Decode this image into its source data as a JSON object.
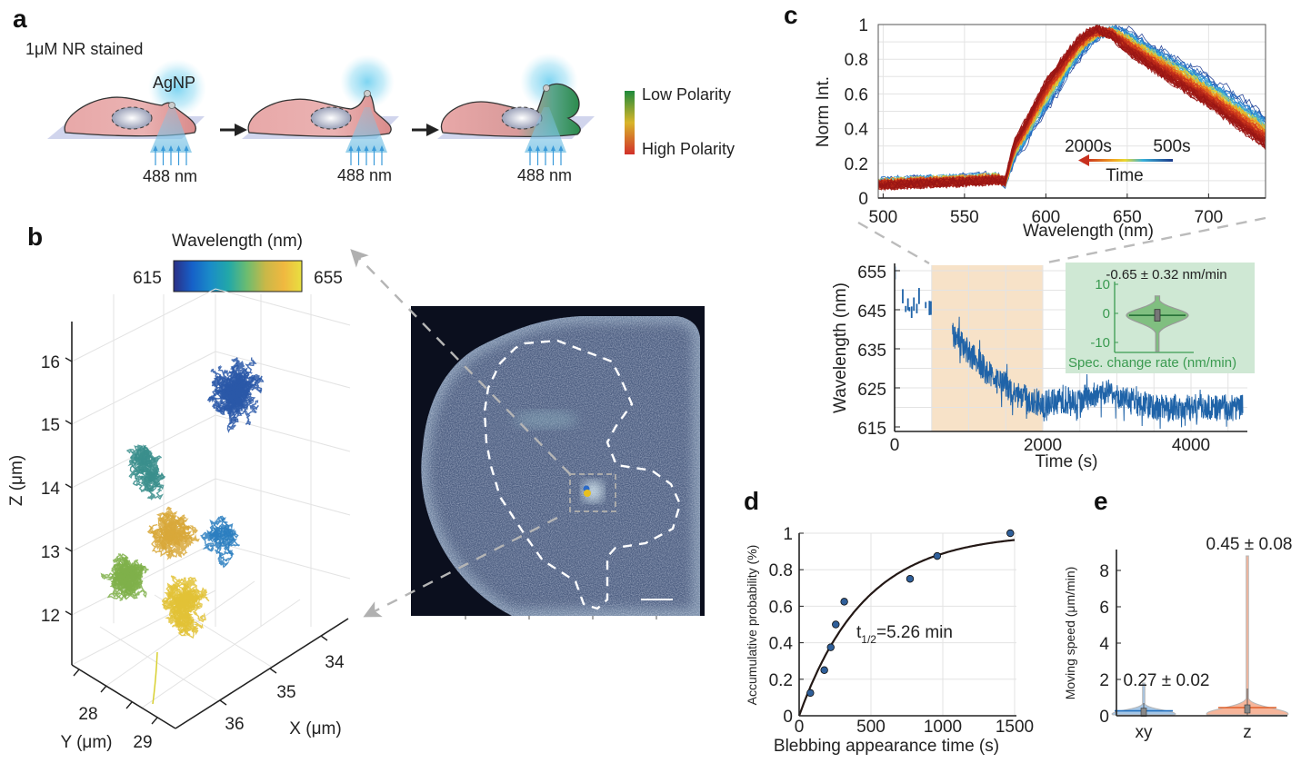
{
  "panel_labels": {
    "a": "a",
    "b": "b",
    "c": "c",
    "d": "d",
    "e": "e"
  },
  "panel_a": {
    "stain_label": "1μM NR stained",
    "particle_label": "AgNP",
    "excitation_labels": [
      "488 nm",
      "488 nm",
      "488 nm"
    ],
    "legend": {
      "low": "Low Polarity",
      "high": "High Polarity",
      "colors": [
        "#1e8a3c",
        "#d8b52a",
        "#d2302a"
      ]
    }
  },
  "panel_b": {
    "colorbar": {
      "title": "Wavelength (nm)",
      "min_label": "615",
      "max_label": "655",
      "colors": [
        "#2b2f86",
        "#1660c8",
        "#1a8cc8",
        "#22a8a8",
        "#6cbc70",
        "#c8b848",
        "#f0b840",
        "#e8e040"
      ]
    },
    "axes": {
      "z_label": "Z (μm)",
      "z_ticks": [
        "12",
        "13",
        "14",
        "15",
        "16"
      ],
      "y_label": "Y (μm)",
      "y_ticks": [
        "28",
        "29"
      ],
      "x_label": "X (μm)",
      "x_ticks": [
        "34",
        "35",
        "36"
      ]
    }
  },
  "chart_data": [
    {
      "type": "line",
      "xlabel": "Wavelength (nm)",
      "ylabel": "Norm Int.",
      "xlim": [
        497,
        735
      ],
      "ylim": [
        0,
        1
      ],
      "xticks": [
        "500",
        "550",
        "600",
        "650",
        "700"
      ],
      "yticks": [
        "0",
        "0.2",
        "0.4",
        "0.6",
        "0.8",
        "1"
      ],
      "grid": true,
      "colormap": "jet",
      "legend": {
        "start_label": "2000s",
        "end_label": "500s",
        "title": "Time"
      },
      "wavelengths": [
        497,
        520,
        550,
        570,
        575,
        580,
        600,
        620,
        630,
        640,
        650,
        670,
        700,
        735
      ],
      "series": [
        {
          "name": "500s",
          "values": [
            0.1,
            0.11,
            0.12,
            0.13,
            0.08,
            0.2,
            0.5,
            0.8,
            0.91,
            0.98,
            0.97,
            0.86,
            0.7,
            0.48
          ]
        },
        {
          "name": "2000s",
          "values": [
            0.07,
            0.08,
            0.09,
            0.1,
            0.1,
            0.3,
            0.67,
            0.92,
            0.98,
            0.94,
            0.85,
            0.72,
            0.54,
            0.3
          ]
        }
      ]
    },
    {
      "type": "line",
      "xlabel": "Time (s)",
      "ylabel": "Wavelength (nm)",
      "xlim": [
        0,
        4750
      ],
      "ylim": [
        614,
        656
      ],
      "xticks": [
        "0",
        "2000",
        "4000"
      ],
      "yticks": [
        "615",
        "625",
        "635",
        "645",
        "655"
      ],
      "highlight_range": [
        500,
        2000
      ],
      "series_color": "#1f63a8",
      "early_points": [
        [
          5,
          654
        ],
        [
          110,
          648
        ],
        [
          150,
          645
        ],
        [
          180,
          646
        ],
        [
          200,
          645
        ],
        [
          230,
          644
        ],
        [
          260,
          646
        ],
        [
          300,
          645
        ],
        [
          330,
          648
        ],
        [
          420,
          646
        ],
        [
          470,
          645
        ],
        [
          490,
          645
        ]
      ],
      "trend": [
        [
          780,
          639
        ],
        [
          1000,
          634
        ],
        [
          1200,
          630
        ],
        [
          1400,
          627
        ],
        [
          1600,
          624
        ],
        [
          1800,
          622
        ],
        [
          2000,
          621
        ],
        [
          2500,
          622
        ],
        [
          2900,
          624
        ],
        [
          3100,
          622
        ],
        [
          3500,
          620
        ],
        [
          4000,
          620
        ],
        [
          4700,
          620
        ]
      ],
      "inset": {
        "type": "violin",
        "title": "-0.65 ± 0.32 nm/min",
        "xlabel": "Spec. change rate (nm/min)",
        "yticks": [
          "-10",
          "0",
          "10"
        ],
        "ylim": [
          -14,
          10
        ],
        "mean": -0.65,
        "sem": 0.32,
        "range": [
          -13,
          6
        ],
        "background": "#cfe8d4"
      }
    },
    {
      "type": "scatter",
      "xlabel": "Blebbing appearance time (s)",
      "ylabel": "Accumulative probability (%)",
      "xlim": [
        0,
        1500
      ],
      "ylim": [
        0,
        1
      ],
      "xticks": [
        "0",
        "500",
        "1000",
        "1500"
      ],
      "yticks": [
        "0",
        "0.2",
        "0.4",
        "0.6",
        "0.8",
        "1"
      ],
      "grid": true,
      "x": [
        78,
        175,
        220,
        255,
        314,
        772,
        961,
        1470
      ],
      "y": [
        0.125,
        0.25,
        0.375,
        0.5,
        0.625,
        0.75,
        0.875,
        1.0
      ],
      "fit": {
        "model": "1-exp(-ln2*t/t_half)",
        "t_half_s": 315.6
      },
      "annotation": {
        "base": "t",
        "sub": "1/2",
        "rest": "=5.26 min"
      }
    },
    {
      "type": "violin",
      "ylabel": "Moving speed (μm/min)",
      "ylim": [
        0,
        9
      ],
      "yticks": [
        "0",
        "2",
        "4",
        "6",
        "8"
      ],
      "categories": [
        "xy",
        "z"
      ],
      "medians": [
        0.27,
        0.45
      ],
      "max": [
        1.8,
        8.8
      ],
      "value_labels": [
        "0.27 ± 0.02",
        "0.45 ± 0.08"
      ],
      "colors": [
        "#1f6fbf",
        "#e0602a"
      ],
      "fill_colors": [
        "#9cc0e4",
        "#f6ae90"
      ]
    }
  ]
}
